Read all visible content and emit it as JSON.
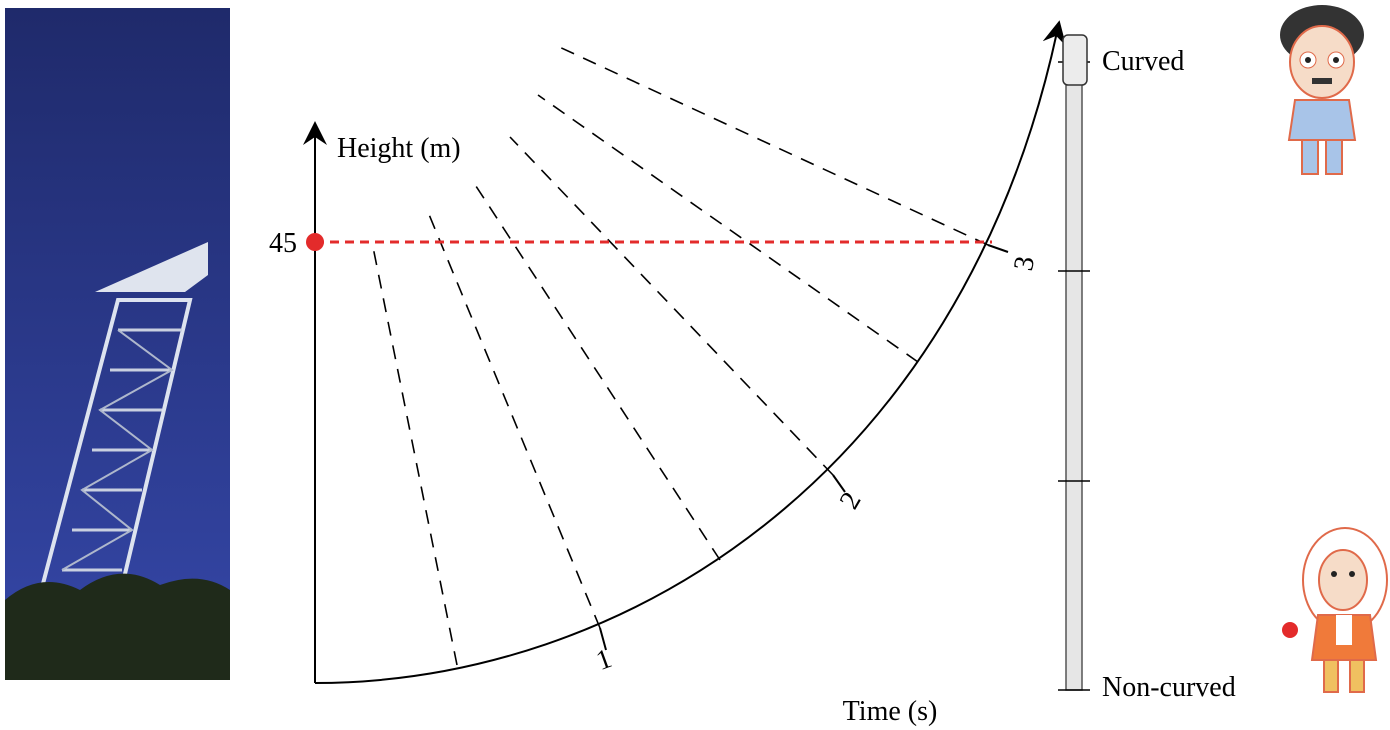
{
  "diagram": {
    "y_axis_label": "Height (m)",
    "height_marker": "45",
    "x_axis_label": "Time (s)",
    "time_ticks": [
      "1",
      "2",
      "3"
    ]
  },
  "slider": {
    "top_label": "Curved",
    "bottom_label": "Non-curved"
  }
}
